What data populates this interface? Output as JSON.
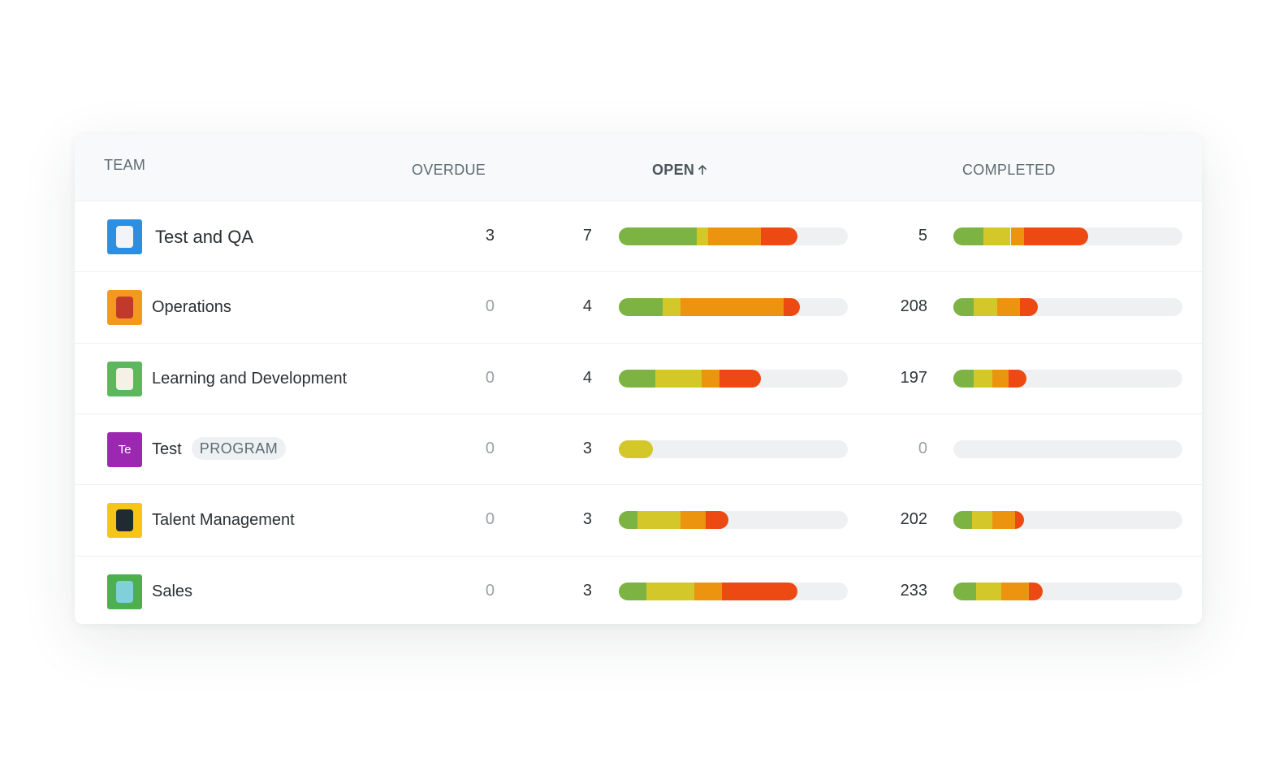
{
  "header": {
    "team": "TEAM",
    "overdue": "OVERDUE",
    "open": "OPEN",
    "completed": "COMPLETED"
  },
  "segment_colors": [
    "#7cb342",
    "#d4c72a",
    "#ec9410",
    "#ec4a12"
  ],
  "rows": [
    {
      "team": "Test and QA",
      "overdue": 3,
      "open": 7,
      "completed": 5,
      "open_bar": [
        34,
        5,
        23,
        16
      ],
      "completed_bar": [
        13,
        12,
        6,
        28
      ]
    },
    {
      "team": "Operations",
      "overdue": 0,
      "open": 4,
      "completed": 208,
      "open_bar": [
        19,
        8,
        45,
        7
      ],
      "completed_bar": [
        9,
        10,
        10,
        8
      ]
    },
    {
      "team": "Learning and Development",
      "overdue": 0,
      "open": 4,
      "completed": 197,
      "open_bar": [
        16,
        20,
        8,
        18
      ],
      "completed_bar": [
        9,
        8,
        7,
        8
      ]
    },
    {
      "team": "Test",
      "icon_text": "Te",
      "tag": "PROGRAM",
      "overdue": 0,
      "open": 3,
      "completed": 0,
      "open_bar": [
        0,
        15,
        0,
        0
      ],
      "completed_bar": [
        0,
        0,
        0,
        0
      ]
    },
    {
      "team": "Talent Management",
      "overdue": 0,
      "open": 3,
      "completed": 202,
      "open_bar": [
        8,
        19,
        11,
        10
      ],
      "completed_bar": [
        8,
        9,
        10,
        4
      ]
    },
    {
      "team": "Sales",
      "overdue": 0,
      "open": 3,
      "completed": 233,
      "open_bar": [
        12,
        21,
        12,
        33
      ],
      "completed_bar": [
        10,
        11,
        12,
        6
      ]
    }
  ]
}
